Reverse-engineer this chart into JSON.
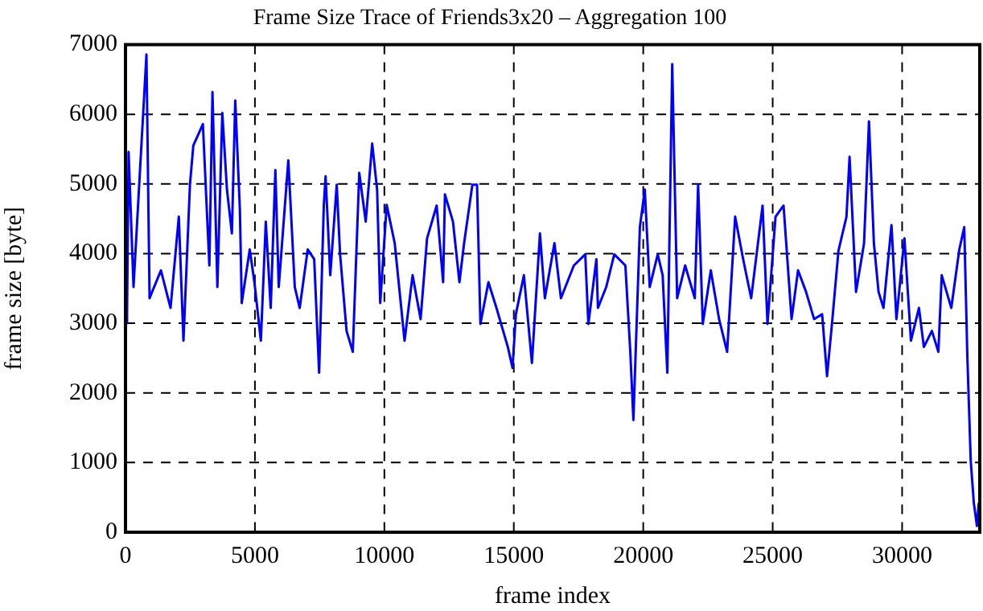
{
  "chart_data": {
    "type": "line",
    "title": "Frame Size Trace of Friends3x20 – Aggregation 100",
    "xlabel": "frame index",
    "ylabel": "frame size [byte]",
    "xlim": [
      0,
      33000
    ],
    "xticks": [
      0,
      5000,
      10000,
      15000,
      20000,
      25000,
      30000
    ],
    "ylim": [
      0,
      7000
    ],
    "yticks": [
      0,
      1000,
      2000,
      3000,
      4000,
      5000,
      6000,
      7000
    ],
    "grid": true,
    "legend": false,
    "marker": "none",
    "line_style": "solid",
    "series": [
      {
        "color": "#0000ff",
        "x": [
          0,
          60,
          120,
          310,
          810,
          930,
          1370,
          1740,
          2060,
          2240,
          2490,
          2620,
          2990,
          3240,
          3360,
          3550,
          3740,
          3920,
          4110,
          4240,
          4420,
          4490,
          4800,
          4980,
          5230,
          5420,
          5610,
          5790,
          5920,
          6290,
          6540,
          6730,
          7040,
          7290,
          7480,
          7660,
          7730,
          7910,
          8160,
          8290,
          8540,
          8780,
          9030,
          9280,
          9530,
          9720,
          9840,
          10090,
          10400,
          10780,
          11090,
          11400,
          11650,
          12020,
          12270,
          12340,
          12650,
          12900,
          13080,
          13400,
          13580,
          13710,
          14020,
          14330,
          14770,
          14950,
          15080,
          15390,
          15700,
          16010,
          16200,
          16570,
          16820,
          17320,
          17760,
          17880,
          18190,
          18250,
          18570,
          18880,
          19310,
          19500,
          19620,
          19870,
          20060,
          20250,
          20560,
          20750,
          20930,
          21120,
          21310,
          21620,
          21990,
          22120,
          22300,
          22610,
          22930,
          23240,
          23550,
          23860,
          24170,
          24610,
          24800,
          25110,
          25420,
          25730,
          25980,
          26290,
          26600,
          26910,
          27100,
          27290,
          27540,
          27850,
          27970,
          28220,
          28530,
          28720,
          28910,
          29090,
          29280,
          29590,
          29780,
          30090,
          30340,
          30650,
          30840,
          31150,
          31400,
          31530,
          31900,
          32210,
          32400,
          32520,
          32650,
          32770,
          32890,
          32960
        ],
        "values": [
          3000,
          3130,
          5460,
          3520,
          6860,
          3360,
          3760,
          3220,
          4530,
          2750,
          4990,
          5550,
          5860,
          3830,
          6320,
          3520,
          6020,
          4920,
          4290,
          6200,
          4620,
          3290,
          4060,
          3590,
          2750,
          4460,
          3220,
          5200,
          3520,
          5340,
          3520,
          3220,
          4060,
          3920,
          2290,
          4690,
          5110,
          3690,
          4990,
          3990,
          2890,
          2590,
          5160,
          4460,
          5580,
          4920,
          3290,
          4700,
          4150,
          2750,
          3690,
          3060,
          4220,
          4690,
          3590,
          4850,
          4460,
          3590,
          4150,
          4990,
          4990,
          2990,
          3590,
          3220,
          2660,
          2360,
          3130,
          3690,
          2430,
          4290,
          3360,
          4150,
          3360,
          3830,
          3990,
          2990,
          3920,
          3220,
          3520,
          3990,
          3830,
          2590,
          1610,
          4380,
          4920,
          3520,
          3990,
          3690,
          2290,
          6720,
          3360,
          3830,
          3360,
          4990,
          2990,
          3760,
          3060,
          2590,
          4530,
          3920,
          3360,
          4690,
          2990,
          4530,
          4690,
          3060,
          3760,
          3450,
          3060,
          3130,
          2240,
          2990,
          4040,
          4530,
          5390,
          3450,
          4150,
          5900,
          4150,
          3450,
          3220,
          4410,
          3060,
          4220,
          2750,
          3220,
          2660,
          2890,
          2590,
          3690,
          3220,
          4060,
          4380,
          2520,
          1030,
          420,
          90,
          420
        ]
      }
    ]
  }
}
